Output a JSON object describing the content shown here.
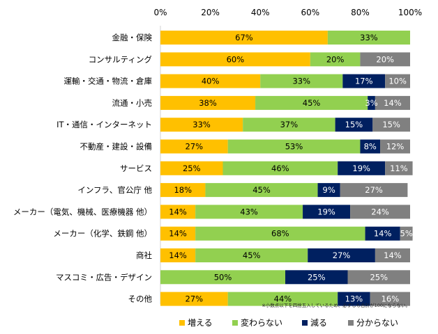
{
  "chart_data": {
    "type": "bar",
    "orientation": "horizontal",
    "stacked": true,
    "title": "",
    "xlabel": "",
    "ylabel": "",
    "xlim": [
      0,
      100
    ],
    "x_ticks": [
      "0%",
      "20%",
      "40%",
      "60%",
      "80%",
      "100%"
    ],
    "grid": false,
    "legend_position": "bottom",
    "categories": [
      "金融・保険",
      "コンサルティング",
      "運輸・交通・物流・倉庫",
      "流通・小売",
      "IT・通信・インターネット",
      "不動産・建設・設備",
      "サービス",
      "インフラ、官公庁 他",
      "メーカー（電気、機械、医療機器 他）",
      "メーカー（化学、鉄鋼 他）",
      "商社",
      "マスコミ・広告・デザイン",
      "その他"
    ],
    "series": [
      {
        "name": "増える",
        "color": "#FFC000",
        "label_color": "#000000",
        "values": [
          67,
          60,
          40,
          38,
          33,
          27,
          25,
          18,
          14,
          14,
          14,
          0,
          27
        ]
      },
      {
        "name": "変わらない",
        "color": "#92D050",
        "label_color": "#000000",
        "values": [
          33,
          20,
          33,
          45,
          37,
          53,
          46,
          45,
          43,
          68,
          45,
          50,
          44
        ]
      },
      {
        "name": "減る",
        "color": "#002060",
        "label_color": "#FFFFFF",
        "values": [
          0,
          0,
          17,
          3,
          15,
          8,
          19,
          9,
          19,
          14,
          27,
          25,
          13
        ]
      },
      {
        "name": "分からない",
        "color": "#808080",
        "label_color": "#FFFFFF",
        "values": [
          0,
          20,
          10,
          14,
          15,
          12,
          11,
          27,
          24,
          5,
          14,
          25,
          16
        ]
      }
    ],
    "data_label_suffix": "%",
    "footnote": "※小数点以下を四捨五入しているため、必ずしも合計が100にならない。"
  }
}
